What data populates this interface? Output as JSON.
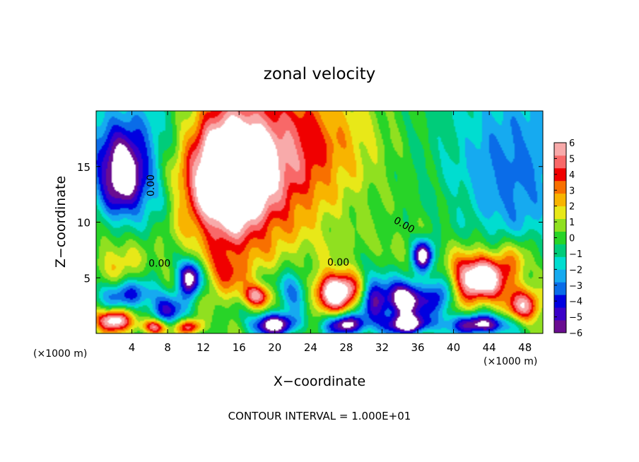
{
  "chart_data": {
    "type": "heatmap",
    "title": "zonal velocity",
    "xlabel": "X−coordinate",
    "ylabel": "Z−coordinate",
    "x_unit_left": "(×1000 m)",
    "x_unit_right": "(×1000 m)",
    "footer": "CONTOUR INTERVAL = 1.000E+01",
    "xlim": [
      0,
      50
    ],
    "ylim": [
      0,
      20
    ],
    "x_ticks": [
      4,
      8,
      12,
      16,
      20,
      24,
      28,
      32,
      36,
      40,
      44,
      48
    ],
    "x_tick_labels": [
      "4",
      "8",
      "12",
      "16",
      "20",
      "24",
      "28",
      "32",
      "36",
      "40",
      "44",
      "48"
    ],
    "y_ticks": [
      5,
      10,
      15
    ],
    "y_tick_labels": [
      "5",
      "10",
      "15"
    ],
    "colorbar": {
      "min": -6,
      "max": 6,
      "ticks": [
        6,
        5,
        4,
        3,
        2,
        1,
        0,
        -1,
        -2,
        -3,
        -4,
        -5,
        -6
      ],
      "tick_labels": [
        "6",
        "5",
        "4",
        "3",
        "2",
        "1",
        "0",
        "−1",
        "−2",
        "−3",
        "−4",
        "−5",
        "−6"
      ],
      "colors": [
        "#6a0d91",
        "#3a00c8",
        "#0000e0",
        "#0a6ce8",
        "#16aaf0",
        "#00ddd0",
        "#00cc7a",
        "#28d428",
        "#90e020",
        "#e8e818",
        "#f8b400",
        "#f87000",
        "#f00000",
        "#f86868",
        "#f8aaaa"
      ],
      "over_color": "#ffffff",
      "under_color": "#ffffff"
    },
    "contour_labels": [
      {
        "text": "0.00",
        "x": 6.5,
        "y": 13.3,
        "rotate": -90
      },
      {
        "text": "0.00",
        "x": 7.1,
        "y": 6.0
      },
      {
        "text": "0.00",
        "x": 27.1,
        "y": 6.1
      },
      {
        "text": "0.00",
        "x": 34.3,
        "y": 9.5,
        "rotate": 30
      }
    ],
    "anomalies": [
      {
        "x": 15.0,
        "y": 14.0,
        "rx": 4.4,
        "ry": 6.2,
        "amp": 8.0
      },
      {
        "x": 13.5,
        "y": 15.5,
        "rx": 6.0,
        "ry": 6.0,
        "amp": 3.0
      },
      {
        "x": 21.5,
        "y": 16.0,
        "rx": 5.0,
        "ry": 8.0,
        "amp": 3.5
      },
      {
        "x": 27.0,
        "y": 17.0,
        "rx": 5.5,
        "ry": 5.0,
        "amp": 1.8
      },
      {
        "x": 3.0,
        "y": 14.0,
        "rx": 2.8,
        "ry": 3.6,
        "amp": -7.0
      },
      {
        "x": 4.5,
        "y": 18.0,
        "rx": 8.0,
        "ry": 4.0,
        "amp": -2.5
      },
      {
        "x": 46.0,
        "y": 15.0,
        "rx": 6.0,
        "ry": 7.0,
        "amp": -2.0
      },
      {
        "x": 47.0,
        "y": 10.0,
        "rx": 4.0,
        "ry": 4.0,
        "amp": -1.0
      },
      {
        "x": 7.0,
        "y": 12.0,
        "rx": 2.0,
        "ry": 2.5,
        "amp": -1.5
      },
      {
        "x": 27.0,
        "y": 3.8,
        "rx": 2.5,
        "ry": 1.7,
        "amp": 8.0
      },
      {
        "x": 43.0,
        "y": 5.0,
        "rx": 3.5,
        "ry": 2.2,
        "amp": 8.0
      },
      {
        "x": 34.5,
        "y": 3.0,
        "rx": 2.2,
        "ry": 1.6,
        "amp": -8.0
      },
      {
        "x": 36.6,
        "y": 7.0,
        "rx": 1.1,
        "ry": 1.4,
        "amp": -7.0
      },
      {
        "x": 10.5,
        "y": 5.0,
        "rx": 1.3,
        "ry": 1.6,
        "amp": -7.5
      },
      {
        "x": 18.0,
        "y": 3.4,
        "rx": 1.6,
        "ry": 1.0,
        "amp": 5.0
      },
      {
        "x": 14.5,
        "y": 5.5,
        "rx": 2.2,
        "ry": 2.0,
        "amp": 2.5
      },
      {
        "x": 22.0,
        "y": 4.0,
        "rx": 2.0,
        "ry": 1.8,
        "amp": -3.5
      },
      {
        "x": 30.0,
        "y": 8.0,
        "rx": 6.0,
        "ry": 1.5,
        "amp": 0.5
      },
      {
        "x": 20.0,
        "y": 0.8,
        "rx": 2.5,
        "ry": 1.0,
        "amp": -7.0
      },
      {
        "x": 28.0,
        "y": 0.8,
        "rx": 2.0,
        "ry": 0.9,
        "amp": -7.0
      },
      {
        "x": 35.0,
        "y": 0.8,
        "rx": 2.4,
        "ry": 0.9,
        "amp": -7.0
      },
      {
        "x": 43.0,
        "y": 0.8,
        "rx": 3.0,
        "ry": 0.9,
        "amp": -7.0
      },
      {
        "x": 2.0,
        "y": 1.2,
        "rx": 2.0,
        "ry": 1.0,
        "amp": 7.0
      },
      {
        "x": 6.5,
        "y": 0.6,
        "rx": 1.5,
        "ry": 0.7,
        "amp": 6.0
      },
      {
        "x": 10.5,
        "y": 0.6,
        "rx": 1.5,
        "ry": 0.7,
        "amp": 5.0
      },
      {
        "x": 48.0,
        "y": 2.5,
        "rx": 2.0,
        "ry": 1.5,
        "amp": 5.0
      },
      {
        "x": 2.5,
        "y": 6.5,
        "rx": 2.5,
        "ry": 2.0,
        "amp": 2.0
      },
      {
        "x": 3.5,
        "y": 3.5,
        "rx": 3.0,
        "ry": 1.3,
        "amp": -4.0
      },
      {
        "x": 8.0,
        "y": 2.0,
        "rx": 2.0,
        "ry": 1.5,
        "amp": -4.0
      },
      {
        "x": 31.0,
        "y": 3.0,
        "rx": 1.5,
        "ry": 2.5,
        "amp": -4.5
      },
      {
        "x": 38.5,
        "y": 3.5,
        "rx": 1.5,
        "ry": 2.0,
        "amp": -4.5
      },
      {
        "x": 47.0,
        "y": 7.0,
        "rx": 2.0,
        "ry": 2.0,
        "amp": 2.0
      }
    ],
    "grid": false,
    "legend": "right"
  }
}
